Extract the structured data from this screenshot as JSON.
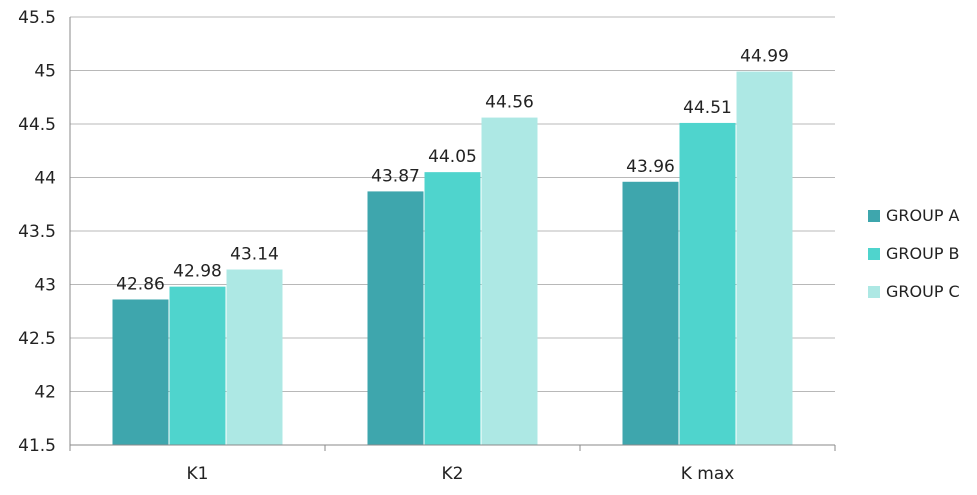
{
  "chart_data": {
    "type": "bar",
    "title": "",
    "xlabel": "",
    "ylabel": "",
    "categories": [
      "K1",
      "K2",
      "K max"
    ],
    "series": [
      {
        "name": "GROUP A",
        "color": "#3ea6ad",
        "values": [
          42.86,
          43.87,
          43.96
        ]
      },
      {
        "name": "GROUP B",
        "color": "#4fd4cd",
        "values": [
          42.98,
          44.05,
          44.51
        ]
      },
      {
        "name": "GROUP C",
        "color": "#ade8e4",
        "values": [
          43.14,
          44.56,
          44.99
        ]
      }
    ],
    "data_labels": [
      [
        "42.86",
        "43.87",
        "43.96"
      ],
      [
        "42.98",
        "44.05",
        "44.51"
      ],
      [
        "43.14",
        "44.56",
        "44.99"
      ]
    ],
    "ylim": [
      41.5,
      45.5
    ],
    "yticks": [
      "41.5",
      "42",
      "42.5",
      "43",
      "43.5",
      "44",
      "44.5",
      "45",
      "45.5"
    ],
    "grid": true,
    "legend_position": "right"
  }
}
